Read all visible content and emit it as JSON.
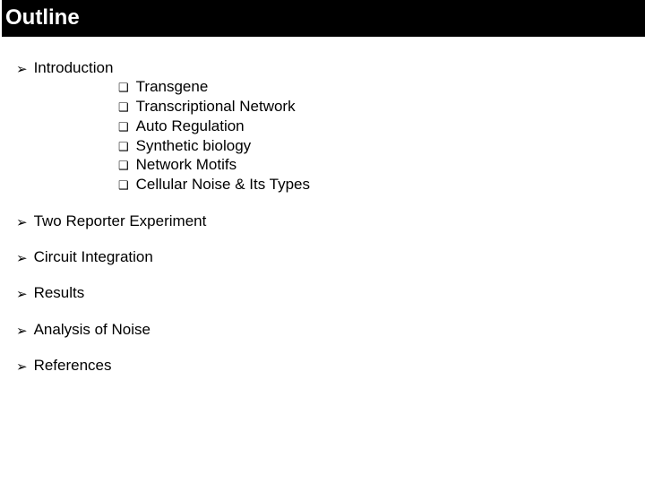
{
  "title": "Outline",
  "colors": {
    "title_bg": "#000000",
    "title_fg": "#ffffff",
    "body_bg": "#ffffff",
    "text": "#000000"
  },
  "typography": {
    "title_fontsize_pt": 18,
    "body_fontsize_pt": 13,
    "font_family": "Arial"
  },
  "bullets": {
    "top_marker": "➢",
    "sub_marker": "❑"
  },
  "outline": [
    {
      "label": "Introduction",
      "children": [
        {
          "label": "Transgene"
        },
        {
          "label": "Transcriptional Network"
        },
        {
          "label": "Auto Regulation"
        },
        {
          "label": "Synthetic biology"
        },
        {
          "label": "Network Motifs"
        },
        {
          "label": "Cellular Noise & Its Types"
        }
      ]
    },
    {
      "label": "Two Reporter Experiment"
    },
    {
      "label": "Circuit Integration"
    },
    {
      "label": "Results"
    },
    {
      "label": "Analysis of Noise"
    },
    {
      "label": "References"
    }
  ]
}
